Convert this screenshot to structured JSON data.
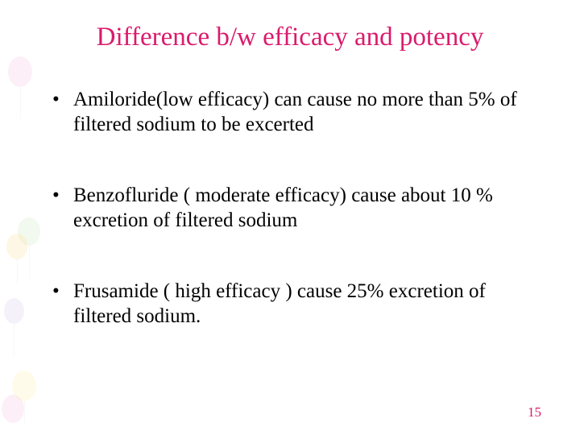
{
  "slide": {
    "title": "Difference b/w efficacy and potency",
    "title_color": "#da1b6d",
    "title_fontsize": 33,
    "bullets": [
      "Amiloride(low efficacy) can cause no more than 5% of filtered sodium to be excerted",
      " Benzofluride ( moderate efficacy) cause about 10 % excretion of filtered sodium",
      " Frusamide ( high efficacy ) cause 25% excretion of filtered sodium."
    ],
    "bullet_color": "#000000",
    "bullet_fontsize": 25,
    "page_number": "15",
    "page_number_color": "#da1b6d",
    "background_color": "#ffffff",
    "decoration": {
      "balloon_colors": [
        "#f4a7d0",
        "#b8e0a0",
        "#ffd470",
        "#c9b3e6",
        "#ffe88a",
        "#f4a7d0"
      ],
      "opacity": 0.18
    }
  }
}
